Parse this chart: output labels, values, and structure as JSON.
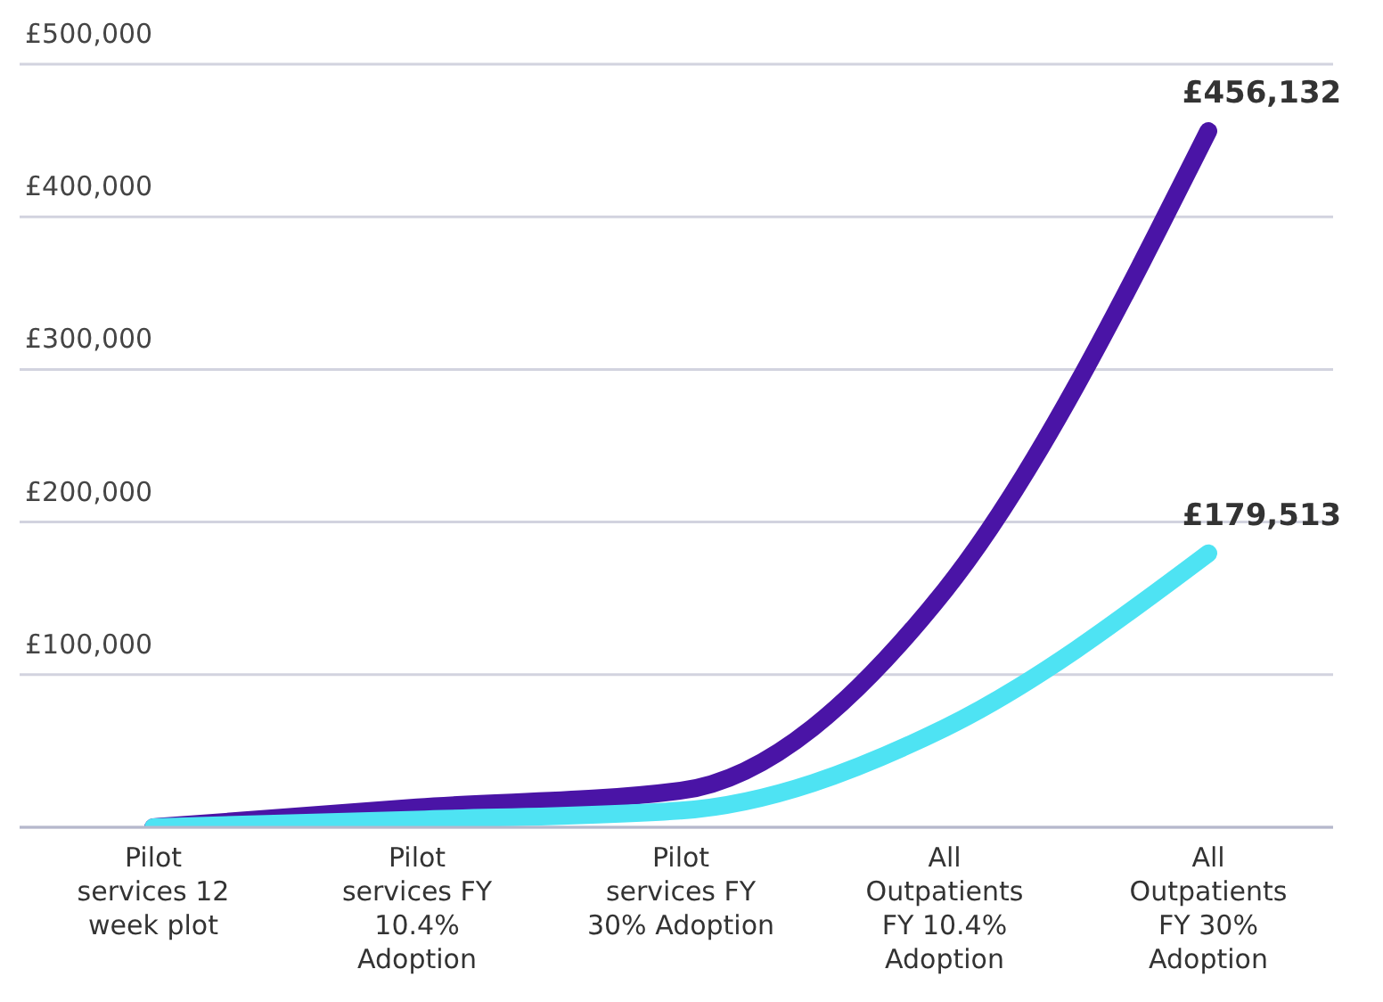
{
  "chart_data": {
    "type": "line",
    "categories": [
      "Pilot services 12 week plot",
      "Pilot services FY 10.4% Adoption",
      "Pilot services FY 30% Adoption",
      "All Outpatients FY 10.4% Adoption",
      "All Outpatients FY 30% Adoption"
    ],
    "series": [
      {
        "color": "#4a14a6",
        "values": [
          0,
          13000,
          24000,
          155000,
          456132
        ],
        "value_labels": [
          null,
          null,
          null,
          null,
          "£456,132"
        ]
      },
      {
        "color": "#4ee3f3",
        "values": [
          0,
          5000,
          11000,
          65000,
          179513
        ],
        "value_labels": [
          null,
          null,
          null,
          null,
          "£179,513"
        ]
      }
    ],
    "ylim": [
      0,
      500000
    ],
    "yticks": [
      {
        "value": 0,
        "label": null
      },
      {
        "value": 100000,
        "label": "£100,000"
      },
      {
        "value": 200000,
        "label": "£200,000"
      },
      {
        "value": 300000,
        "label": "£300,000"
      },
      {
        "value": 400000,
        "label": "£400,000"
      },
      {
        "value": 500000,
        "label": "£500,000"
      }
    ],
    "grid": "y",
    "marker": "none",
    "line_style": "solid"
  }
}
